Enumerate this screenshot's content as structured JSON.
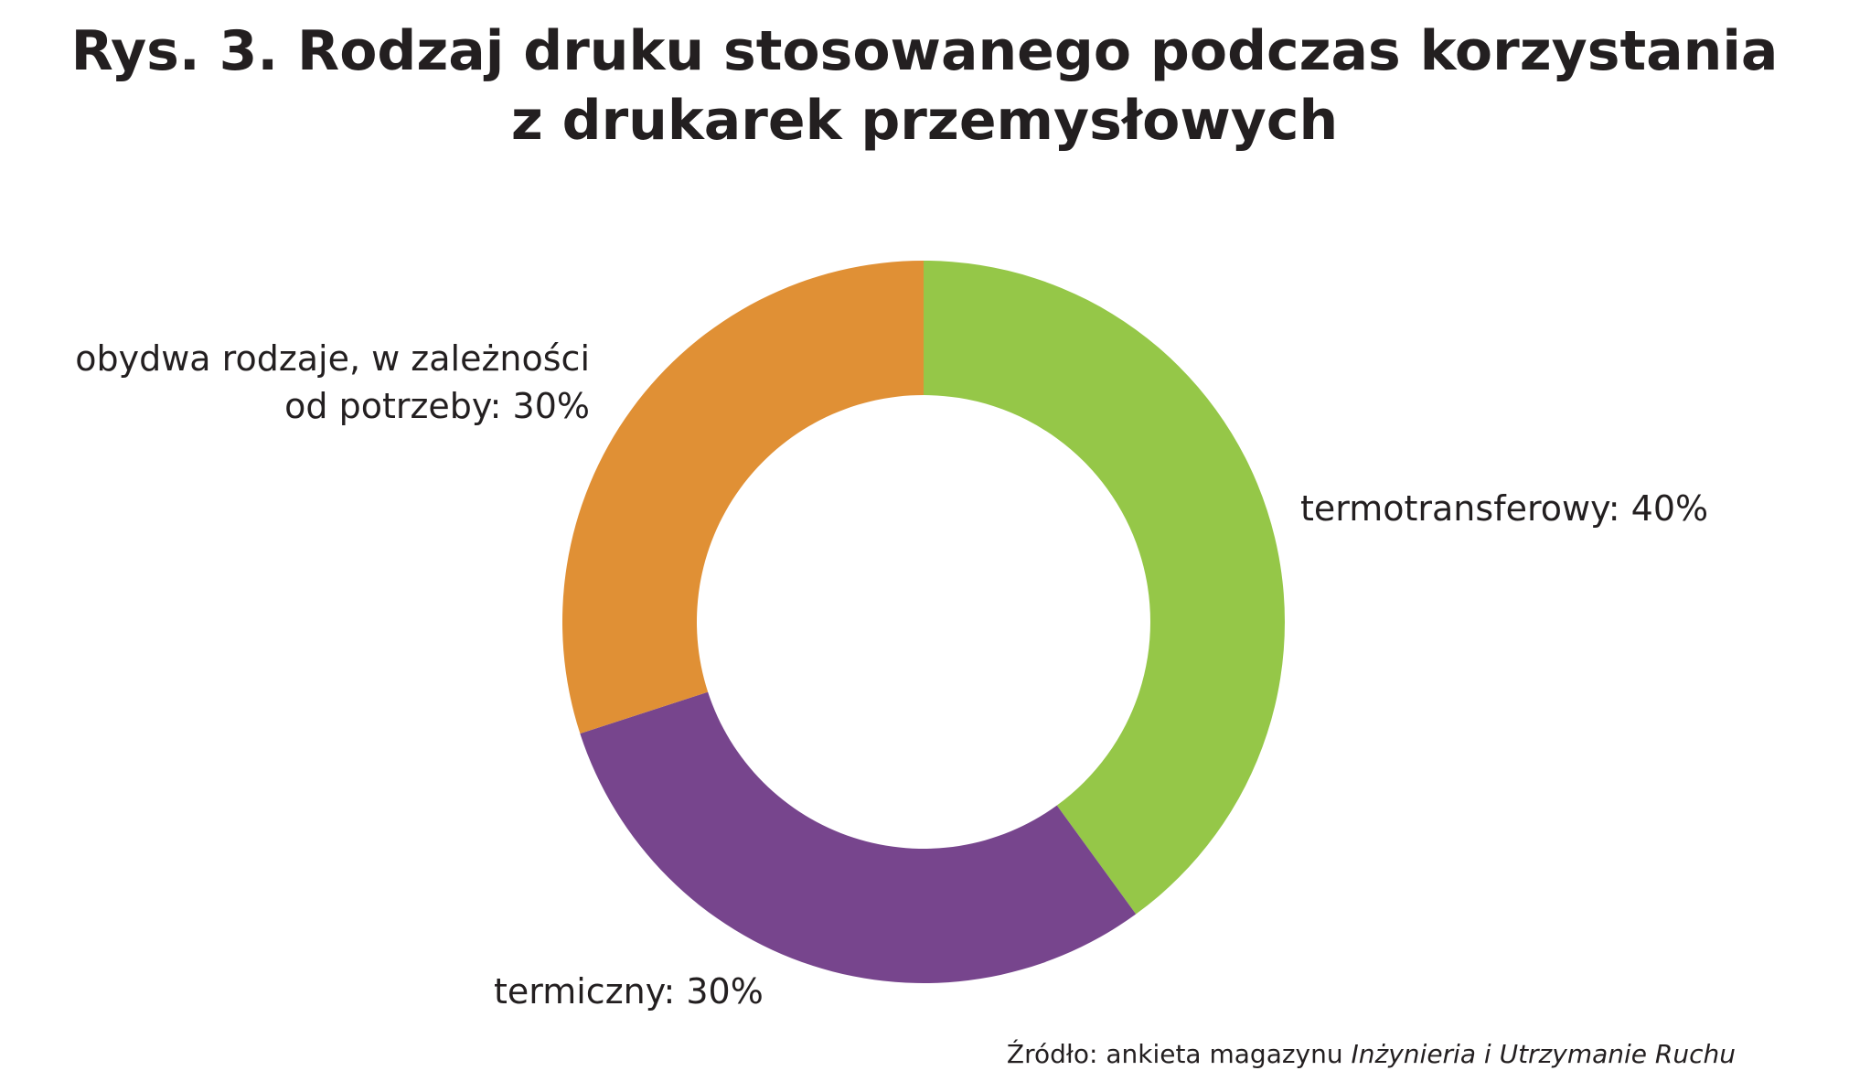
{
  "chart_data": {
    "type": "pie",
    "style": "donut",
    "title_lines": [
      "Rys. 3. Rodzaj druku stosowanego podczas korzystania",
      "z drukarek przemysłowych"
    ],
    "categories": [
      "termotransferowy",
      "termiczny",
      "obydwa rodzaje, w zależności od potrzeby"
    ],
    "values": [
      40,
      30,
      30
    ],
    "colors": [
      "#95c748",
      "#77458d",
      "#e09035"
    ],
    "data_labels": [
      [
        "termotransferowy: 40%"
      ],
      [
        "termiczny: 30%"
      ],
      [
        "obydwa rodzaje, w zależności",
        "od potrzeby: 30%"
      ]
    ],
    "legend": "none",
    "source": {
      "prefix": "Źródło: ankieta magazynu ",
      "italic": "Inżynieria i Utrzymanie Ruchu"
    }
  }
}
